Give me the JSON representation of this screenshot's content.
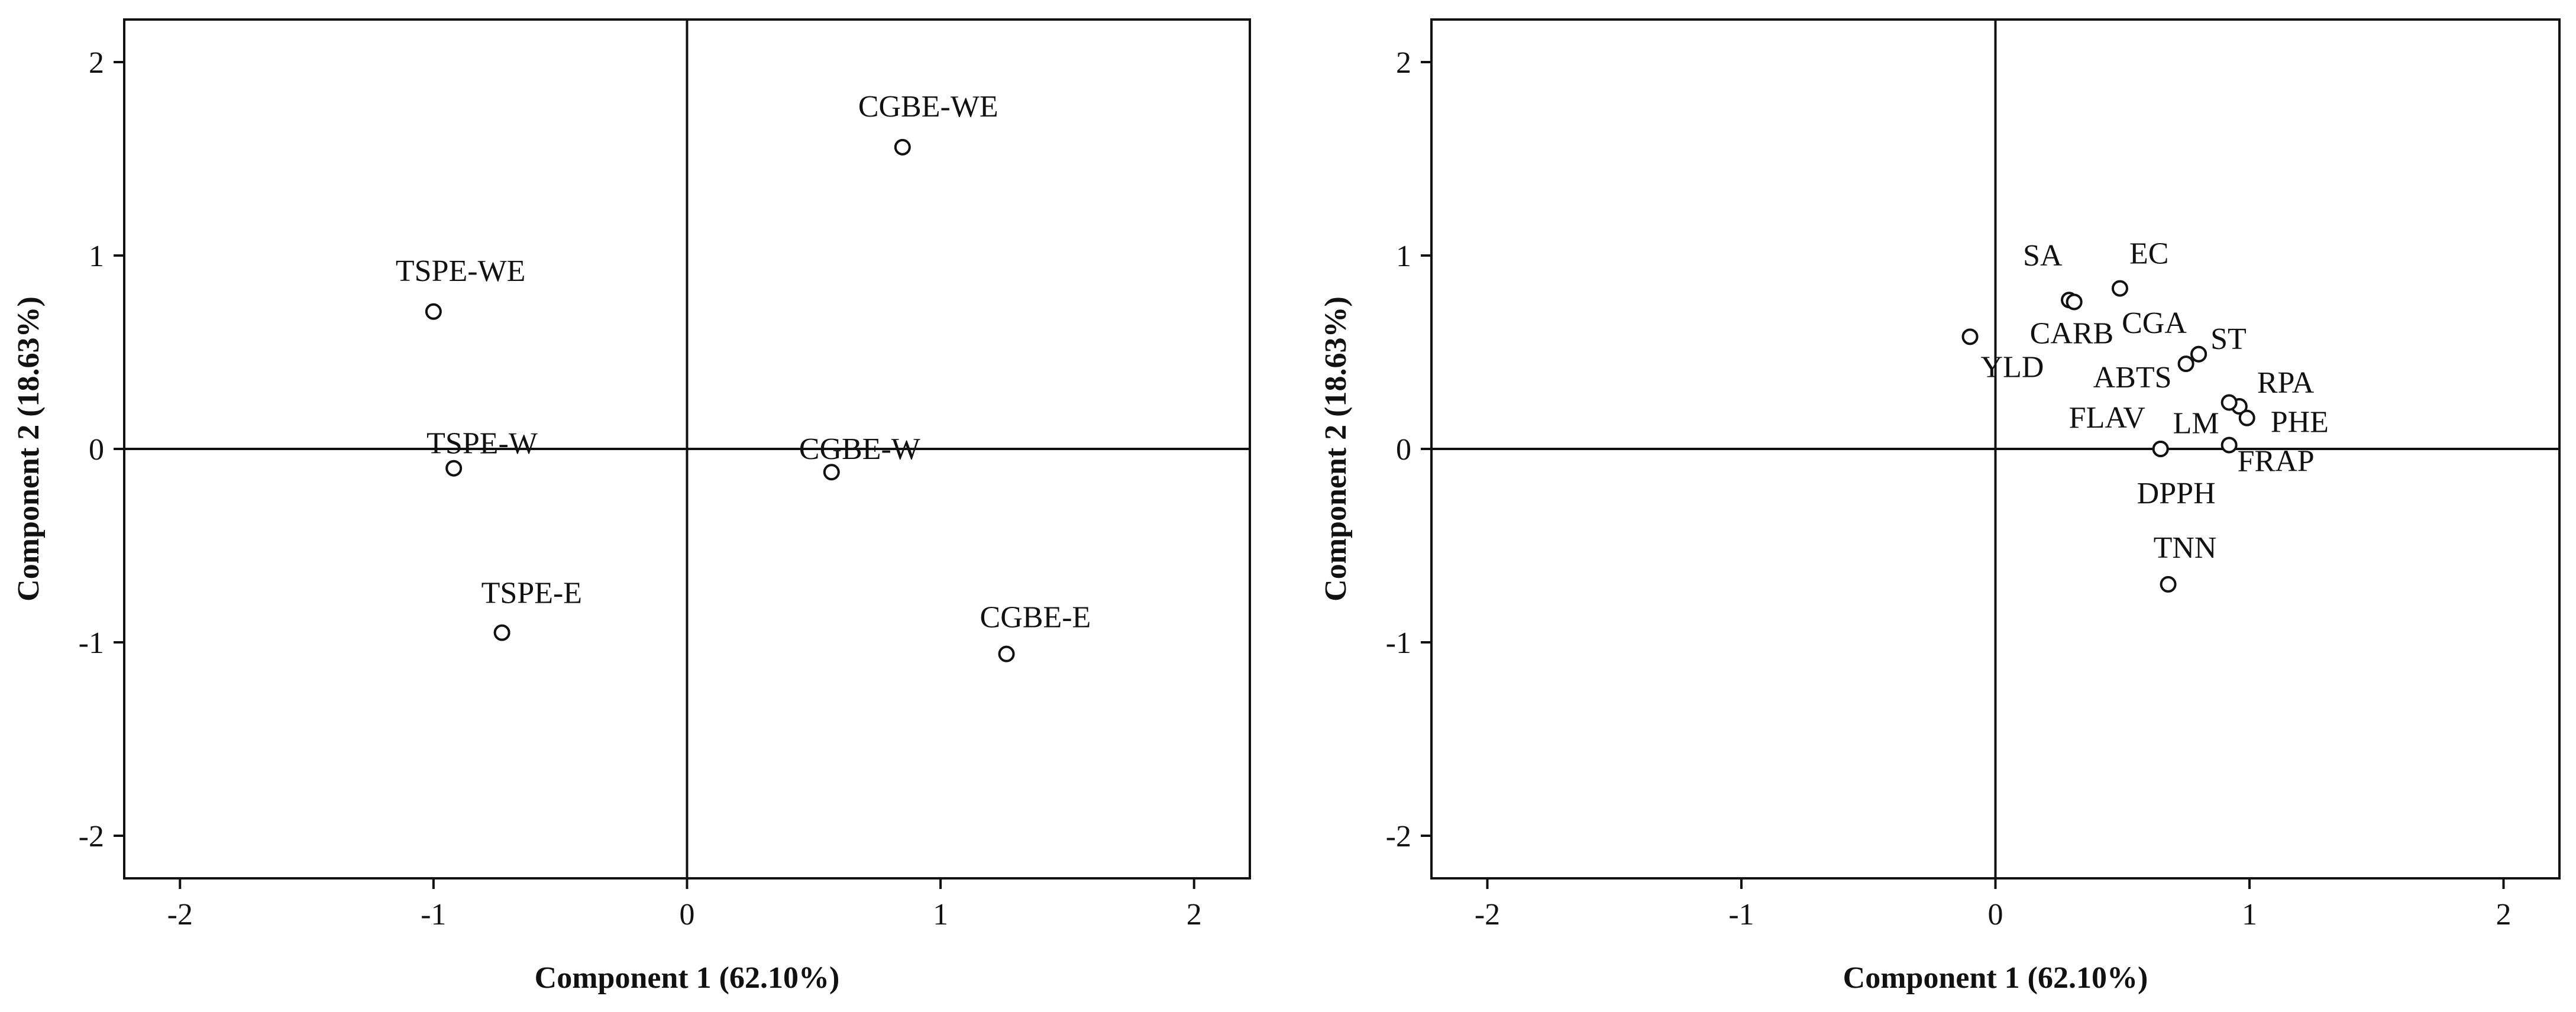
{
  "chart_data": [
    {
      "type": "scatter",
      "title": "",
      "xlabel": "Component 1 (62.10%)",
      "ylabel": "Component 2 (18.63%)",
      "xlim": [
        -2.22,
        2.22
      ],
      "ylim": [
        -2.22,
        2.22
      ],
      "xticks": [
        -2,
        -1,
        0,
        1,
        2
      ],
      "yticks": [
        -2,
        -1,
        0,
        1,
        2
      ],
      "xtick_labels": [
        "-2",
        "-1",
        "0",
        "1",
        "2"
      ],
      "ytick_labels": [
        "-2",
        "-1",
        "0",
        "1",
        "2"
      ],
      "grid": false,
      "reference_lines": [
        0,
        0
      ],
      "points": [
        {
          "label": "CGBE-WE",
          "x": 0.85,
          "y": 1.56
        },
        {
          "label": "TSPE-WE",
          "x": -1.0,
          "y": 0.71
        },
        {
          "label": "TSPE-W",
          "x": -0.92,
          "y": -0.1
        },
        {
          "label": "CGBE-W",
          "x": 0.57,
          "y": -0.12
        },
        {
          "label": "TSPE-E",
          "x": -0.73,
          "y": -0.95
        },
        {
          "label": "CGBE-E",
          "x": 1.26,
          "y": -1.06
        }
      ]
    },
    {
      "type": "scatter",
      "title": "",
      "xlabel": "Component 1 (62.10%)",
      "ylabel": "Component 2 (18.63%)",
      "xlim": [
        -2.22,
        2.22
      ],
      "ylim": [
        -2.22,
        2.22
      ],
      "xticks": [
        -2,
        -1,
        0,
        1,
        2
      ],
      "yticks": [
        -2,
        -1,
        0,
        1,
        2
      ],
      "xtick_labels": [
        "-2",
        "-1",
        "0",
        "1",
        "2"
      ],
      "ytick_labels": [
        "-2",
        "-1",
        "0",
        "1",
        "2"
      ],
      "grid": false,
      "reference_lines": [
        0,
        0
      ],
      "points": [
        {
          "label": "YLD",
          "x": -0.1,
          "y": 0.58
        },
        {
          "label": "SA",
          "x": 0.29,
          "y": 0.77
        },
        {
          "label": "CARB",
          "x": 0.31,
          "y": 0.76
        },
        {
          "label": "EC",
          "x": 0.49,
          "y": 0.83
        },
        {
          "label": "CGA",
          "x": 0.8,
          "y": 0.49
        },
        {
          "label": "ABTS",
          "x": 0.75,
          "y": 0.44
        },
        {
          "label": "ST",
          "x": 0.8,
          "y": 0.49
        },
        {
          "label": "RPA",
          "x": 0.96,
          "y": 0.22
        },
        {
          "label": "LM",
          "x": 0.92,
          "y": 0.24
        },
        {
          "label": "PHE",
          "x": 0.99,
          "y": 0.16
        },
        {
          "label": "FLAV",
          "x": 0.65,
          "y": 0.0
        },
        {
          "label": "FRAP",
          "x": 0.92,
          "y": 0.02
        },
        {
          "label": "DPPH",
          "x": 0.65,
          "y": 0.0
        },
        {
          "label": "TNN",
          "x": 0.68,
          "y": -0.7
        }
      ]
    }
  ]
}
